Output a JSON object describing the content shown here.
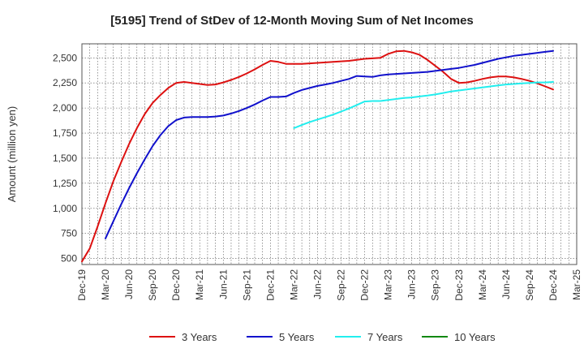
{
  "chart_data": {
    "type": "line",
    "title": "[5195]  Trend of StDev of 12-Month Moving Sum of Net Incomes",
    "ylabel": "Amount (million yen)",
    "xlabel": "",
    "ylim": [
      440,
      2640
    ],
    "yticks": [
      500,
      750,
      1000,
      1250,
      1500,
      1750,
      2000,
      2250,
      2500
    ],
    "ytick_labels": [
      "500",
      "750",
      "1,000",
      "1,250",
      "1,500",
      "1,750",
      "2,000",
      "2,250",
      "2,500"
    ],
    "x_tick_labels": [
      "Dec-19",
      "Mar-20",
      "Jun-20",
      "Sep-20",
      "Dec-20",
      "Mar-21",
      "Jun-21",
      "Sep-21",
      "Dec-21",
      "Mar-22",
      "Jun-22",
      "Sep-22",
      "Dec-22",
      "Mar-23",
      "Jun-23",
      "Sep-23",
      "Dec-23",
      "Mar-24",
      "Jun-24",
      "Sep-24",
      "Dec-24",
      "Mar-25"
    ],
    "grid": true,
    "legend_position": "bottom",
    "series": [
      {
        "name": "3 Years",
        "color": "#dd1111",
        "x": [
          "2019-12",
          "2020-01",
          "2020-02",
          "2020-03",
          "2020-04",
          "2020-05",
          "2020-06",
          "2020-07",
          "2020-08",
          "2020-09",
          "2020-10",
          "2020-11",
          "2020-12",
          "2021-01",
          "2021-02",
          "2021-03",
          "2021-04",
          "2021-05",
          "2021-06",
          "2021-07",
          "2021-08",
          "2021-09",
          "2021-10",
          "2021-11",
          "2021-12",
          "2022-01",
          "2022-02",
          "2022-03",
          "2022-04",
          "2022-05",
          "2022-06",
          "2022-07",
          "2022-08",
          "2022-09",
          "2022-10",
          "2022-11",
          "2022-12",
          "2023-01",
          "2023-02",
          "2023-03",
          "2023-04",
          "2023-05",
          "2023-06",
          "2023-07",
          "2023-08",
          "2023-09",
          "2023-10",
          "2023-11",
          "2023-12",
          "2024-01",
          "2024-02",
          "2024-03",
          "2024-04",
          "2024-05",
          "2024-06",
          "2024-07",
          "2024-08",
          "2024-09",
          "2024-10",
          "2024-11",
          "2024-12"
        ],
        "values": [
          470,
          600,
          820,
          1050,
          1270,
          1460,
          1640,
          1800,
          1940,
          2050,
          2130,
          2200,
          2250,
          2260,
          2250,
          2240,
          2230,
          2235,
          2255,
          2280,
          2310,
          2345,
          2385,
          2430,
          2470,
          2460,
          2440,
          2440,
          2440,
          2445,
          2450,
          2455,
          2460,
          2465,
          2470,
          2480,
          2490,
          2495,
          2500,
          2540,
          2565,
          2570,
          2555,
          2530,
          2480,
          2420,
          2360,
          2290,
          2250,
          2255,
          2270,
          2290,
          2305,
          2315,
          2315,
          2305,
          2290,
          2270,
          2245,
          2215,
          2185
        ]
      },
      {
        "name": "5 Years",
        "color": "#1111cc",
        "x": [
          "2020-03",
          "2020-04",
          "2020-05",
          "2020-06",
          "2020-07",
          "2020-08",
          "2020-09",
          "2020-10",
          "2020-11",
          "2020-12",
          "2021-01",
          "2021-02",
          "2021-03",
          "2021-04",
          "2021-05",
          "2021-06",
          "2021-07",
          "2021-08",
          "2021-09",
          "2021-10",
          "2021-11",
          "2021-12",
          "2022-01",
          "2022-02",
          "2022-03",
          "2022-04",
          "2022-05",
          "2022-06",
          "2022-07",
          "2022-08",
          "2022-09",
          "2022-10",
          "2022-11",
          "2022-12",
          "2023-01",
          "2023-02",
          "2023-03",
          "2023-04",
          "2023-05",
          "2023-06",
          "2023-07",
          "2023-08",
          "2023-09",
          "2023-10",
          "2023-11",
          "2023-12",
          "2024-01",
          "2024-02",
          "2024-03",
          "2024-04",
          "2024-05",
          "2024-06",
          "2024-07",
          "2024-08",
          "2024-09",
          "2024-10",
          "2024-11",
          "2024-12"
        ],
        "values": [
          700,
          870,
          1040,
          1200,
          1350,
          1490,
          1620,
          1730,
          1820,
          1880,
          1905,
          1910,
          1910,
          1910,
          1915,
          1925,
          1945,
          1970,
          2000,
          2035,
          2075,
          2110,
          2110,
          2115,
          2150,
          2180,
          2200,
          2220,
          2235,
          2250,
          2270,
          2290,
          2320,
          2315,
          2310,
          2325,
          2335,
          2340,
          2345,
          2350,
          2355,
          2360,
          2370,
          2380,
          2390,
          2400,
          2415,
          2430,
          2450,
          2470,
          2490,
          2505,
          2520,
          2530,
          2540,
          2550,
          2560,
          2570
        ]
      },
      {
        "name": "7 Years",
        "color": "#22eeee",
        "x": [
          "2022-03",
          "2022-04",
          "2022-05",
          "2022-06",
          "2022-07",
          "2022-08",
          "2022-09",
          "2022-10",
          "2022-11",
          "2022-12",
          "2023-01",
          "2023-02",
          "2023-03",
          "2023-04",
          "2023-05",
          "2023-06",
          "2023-07",
          "2023-08",
          "2023-09",
          "2023-10",
          "2023-11",
          "2023-12",
          "2024-01",
          "2024-02",
          "2024-03",
          "2024-04",
          "2024-05",
          "2024-06",
          "2024-07",
          "2024-08",
          "2024-09",
          "2024-10",
          "2024-11",
          "2024-12"
        ],
        "values": [
          1800,
          1830,
          1860,
          1885,
          1910,
          1935,
          1965,
          1995,
          2030,
          2065,
          2070,
          2070,
          2080,
          2090,
          2100,
          2105,
          2115,
          2125,
          2135,
          2150,
          2165,
          2175,
          2185,
          2195,
          2205,
          2215,
          2225,
          2235,
          2240,
          2245,
          2250,
          2255,
          2255,
          2260
        ]
      },
      {
        "name": "10 Years",
        "color": "#118811",
        "x": [],
        "values": []
      }
    ]
  }
}
